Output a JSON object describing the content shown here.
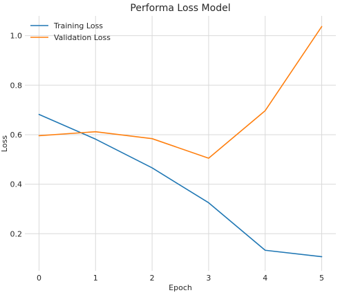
{
  "chart_data": {
    "type": "line",
    "title": "Performa Loss Model",
    "xlabel": "Epoch",
    "ylabel": "Loss",
    "x": [
      0,
      1,
      2,
      3,
      4,
      5
    ],
    "xlim": [
      -0.25,
      5.25
    ],
    "ylim": [
      0.05,
      1.08
    ],
    "xticks": [
      "0",
      "1",
      "2",
      "3",
      "4",
      "5"
    ],
    "yticks": [
      "0.2",
      "0.4",
      "0.6",
      "0.8",
      "1.0"
    ],
    "grid": true,
    "legend_position": "top-left",
    "series": [
      {
        "name": "Training Loss",
        "color": "#1f77b4",
        "values": [
          0.682,
          0.582,
          0.466,
          0.325,
          0.133,
          0.107
        ]
      },
      {
        "name": "Validation Loss",
        "color": "#ff7f0e",
        "values": [
          0.596,
          0.612,
          0.584,
          0.505,
          0.697,
          1.037
        ]
      }
    ]
  }
}
